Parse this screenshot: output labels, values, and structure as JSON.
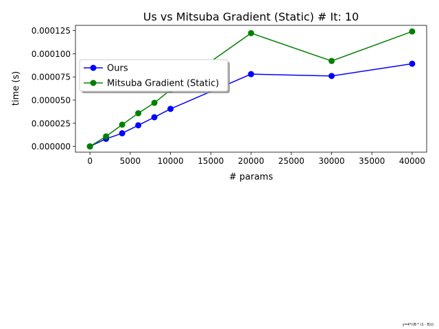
{
  "chart_data": {
    "type": "line",
    "title": "Us vs Mitsuba Gradient (Static) # It: 10",
    "xlabel": "# params",
    "ylabel": "time (s)",
    "xlim": [
      -1800,
      41800
    ],
    "ylim": [
      -6.2e-06,
      0.0001306
    ],
    "x_ticks": [
      0,
      5000,
      10000,
      15000,
      20000,
      25000,
      30000,
      35000,
      40000
    ],
    "x_tick_labels": [
      "0",
      "5000",
      "10000",
      "15000",
      "20000",
      "25000",
      "30000",
      "35000",
      "40000"
    ],
    "y_ticks": [
      0,
      2.5e-05,
      5e-05,
      7.5e-05,
      0.0001,
      0.000125
    ],
    "y_tick_labels": [
      "0.000000",
      "0.000025",
      "0.000050",
      "0.000075",
      "0.000100",
      "0.000125"
    ],
    "grid": false,
    "legend_position": "upper-left",
    "series": [
      {
        "name": "Ours",
        "color": "#0000ff",
        "marker": "circle",
        "x": [
          0,
          2000,
          4000,
          6000,
          8000,
          10000,
          20000,
          30000,
          40000
        ],
        "y": [
          0.0,
          8.2e-06,
          1.42e-05,
          2.28e-05,
          3.15e-05,
          4.05e-05,
          7.8e-05,
          7.6e-05,
          8.92e-05
        ]
      },
      {
        "name": "Mitsuba Gradient (Static)",
        "color": "#008000",
        "marker": "circle",
        "x": [
          0,
          2000,
          4000,
          6000,
          8000,
          10000,
          20000,
          30000,
          40000
        ],
        "y": [
          0.0,
          1.08e-05,
          2.35e-05,
          3.58e-05,
          4.7e-05,
          6.1e-05,
          0.0001222,
          9.22e-05,
          0.000124
        ]
      }
    ]
  },
  "annotation": "y=4*((B * (1 - B)))"
}
